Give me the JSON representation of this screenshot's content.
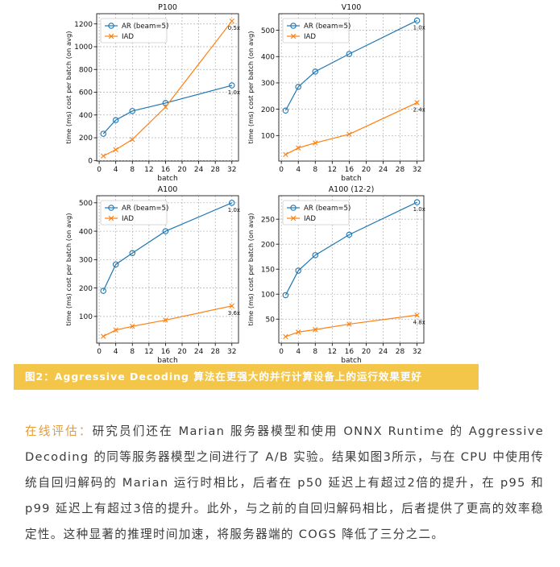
{
  "figure_caption": "图2：Aggressive Decoding 算法在更强大的并行计算设备上的运行效果更好",
  "article": {
    "lead": "在线评估：",
    "body": "研究员们还在 Marian 服务器模型和使用 ONNX Runtime 的 Aggressive Decoding 的同等服务器模型之间进行了 A/B 实验。结果如图3所示，与在 CPU 中使用传统自回归解码的 Marian 运行时相比，后者在 p50 延迟上有超过2倍的提升，在 p95 和 p99 延迟上有超过3倍的提升。此外，与之前的自回归解码相比，后者提供了更高的效率稳定性。这种显著的推理时间加速，将服务器端的 COGS 降低了三分之二。"
  },
  "colors": {
    "ar": "#1f77b4",
    "iad": "#ff7f0e",
    "grid": "#b0b0b0",
    "caption_bg": "#f3c64a",
    "lead": "#e49b3c"
  },
  "chart_data": [
    {
      "type": "line",
      "title": "P100",
      "xlabel": "batch",
      "ylabel": "time (ms) cost per batch (on avg)",
      "x": [
        1,
        4,
        8,
        16,
        32
      ],
      "xticks": [
        0,
        4,
        8,
        12,
        16,
        20,
        24,
        28,
        32
      ],
      "xlim": [
        -0.6,
        33.6
      ],
      "yticks": [
        0,
        200,
        400,
        600,
        800,
        1000,
        1200
      ],
      "ylim": [
        -5,
        1290
      ],
      "grid": true,
      "legend_position": "upper-left",
      "series": [
        {
          "name": "AR (beam=5)",
          "marker": "circle",
          "values": [
            235,
            355,
            435,
            505,
            660
          ]
        },
        {
          "name": "IAD",
          "marker": "x",
          "values": [
            40,
            95,
            185,
            470,
            1225
          ]
        }
      ],
      "annotations": [
        {
          "text": "0.5x",
          "x": 32,
          "y": 1225
        },
        {
          "text": "1.0x",
          "x": 32,
          "y": 660
        }
      ]
    },
    {
      "type": "line",
      "title": "V100",
      "xlabel": "batch",
      "ylabel": "time (ms) cost per batch (on avg)",
      "x": [
        1,
        4,
        8,
        16,
        32
      ],
      "xticks": [
        0,
        4,
        8,
        12,
        16,
        20,
        24,
        28,
        32
      ],
      "xlim": [
        -0.6,
        33.6
      ],
      "yticks": [
        100,
        200,
        300,
        400,
        500
      ],
      "ylim": [
        3,
        563
      ],
      "grid": true,
      "legend_position": "upper-left",
      "series": [
        {
          "name": "AR (beam=5)",
          "marker": "circle",
          "values": [
            195,
            285,
            343,
            410,
            537
          ]
        },
        {
          "name": "IAD",
          "marker": "x",
          "values": [
            28,
            53,
            72,
            105,
            225
          ]
        }
      ],
      "annotations": [
        {
          "text": "1.0x",
          "x": 32,
          "y": 537
        },
        {
          "text": "2.4x",
          "x": 32,
          "y": 225
        }
      ]
    },
    {
      "type": "line",
      "title": "A100",
      "xlabel": "batch",
      "ylabel": "time (ms) cost per batch (on avg)",
      "x": [
        1,
        4,
        8,
        16,
        32
      ],
      "xticks": [
        0,
        4,
        8,
        12,
        16,
        20,
        24,
        28,
        32
      ],
      "xlim": [
        -0.6,
        33.6
      ],
      "yticks": [
        100,
        200,
        300,
        400,
        500
      ],
      "ylim": [
        6,
        525
      ],
      "grid": true,
      "legend_position": "upper-left",
      "series": [
        {
          "name": "AR (beam=5)",
          "marker": "circle",
          "values": [
            190,
            283,
            323,
            400,
            500
          ]
        },
        {
          "name": "IAD",
          "marker": "x",
          "values": [
            30,
            52,
            65,
            87,
            137
          ]
        }
      ],
      "annotations": [
        {
          "text": "1.0x",
          "x": 32,
          "y": 500
        },
        {
          "text": "3.6x",
          "x": 32,
          "y": 137
        }
      ]
    },
    {
      "type": "line",
      "title": "A100 (12-2)",
      "xlabel": "batch",
      "ylabel": "time (ms) cost per batch (on avg)",
      "x": [
        1,
        4,
        8,
        16,
        32
      ],
      "xticks": [
        0,
        4,
        8,
        12,
        16,
        20,
        24,
        28,
        32
      ],
      "xlim": [
        -0.6,
        33.6
      ],
      "yticks": [
        50,
        100,
        150,
        200,
        250
      ],
      "ylim": [
        2,
        297
      ],
      "grid": true,
      "legend_position": "upper-left",
      "series": [
        {
          "name": "AR (beam=5)",
          "marker": "circle",
          "values": [
            98,
            147,
            178,
            219,
            284
          ]
        },
        {
          "name": "IAD",
          "marker": "x",
          "values": [
            15,
            24,
            29,
            40,
            58
          ]
        }
      ],
      "annotations": [
        {
          "text": "1.0x",
          "x": 32,
          "y": 284
        },
        {
          "text": "4.8x",
          "x": 32,
          "y": 58
        }
      ]
    }
  ]
}
